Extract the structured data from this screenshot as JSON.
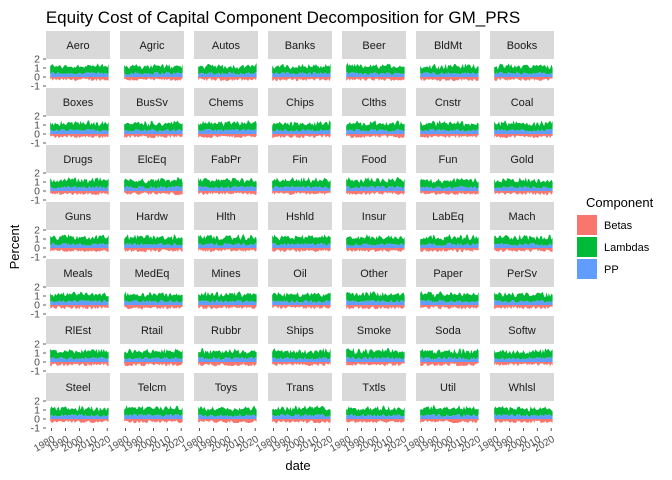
{
  "chart_data": {
    "type": "area",
    "title": "Equity Cost of Capital Component Decomposition for GM_PRS",
    "xlabel": "date",
    "ylabel": "Percent",
    "y_ticks": [
      "2",
      "1",
      "0",
      "-1"
    ],
    "x_ticks": [
      "1980",
      "1990",
      "2000",
      "2010",
      "2020"
    ],
    "xlim": [
      1976,
      2022
    ],
    "ylim": [
      -1,
      2
    ],
    "legend": {
      "title": "Component",
      "position": "right",
      "entries": [
        {
          "name": "Betas",
          "color": "#F8766D"
        },
        {
          "name": "Lambdas",
          "color": "#00BA38"
        },
        {
          "name": "PP",
          "color": "#619CFF"
        }
      ]
    },
    "facet_layout": {
      "rows": 7,
      "cols": 7
    },
    "approx_component_levels": {
      "Betas": -0.3,
      "PP": 0.4,
      "Lambdas": 0.8
    },
    "panels": [
      "Aero",
      "Agric",
      "Autos",
      "Banks",
      "Beer",
      "BldMt",
      "Books",
      "Boxes",
      "BusSv",
      "Chems",
      "Chips",
      "Clths",
      "Cnstr",
      "Coal",
      "Drugs",
      "ElcEq",
      "FabPr",
      "Fin",
      "Food",
      "Fun",
      "Gold",
      "Guns",
      "Hardw",
      "Hlth",
      "Hshld",
      "Insur",
      "LabEq",
      "Mach",
      "Meals",
      "MedEq",
      "Mines",
      "Oil",
      "Other",
      "Paper",
      "PerSv",
      "RlEst",
      "Rtail",
      "Rubbr",
      "Ships",
      "Smoke",
      "Soda",
      "Softw",
      "Steel",
      "Telcm",
      "Toys",
      "Trans",
      "Txtls",
      "Util",
      "Whlsl"
    ]
  }
}
